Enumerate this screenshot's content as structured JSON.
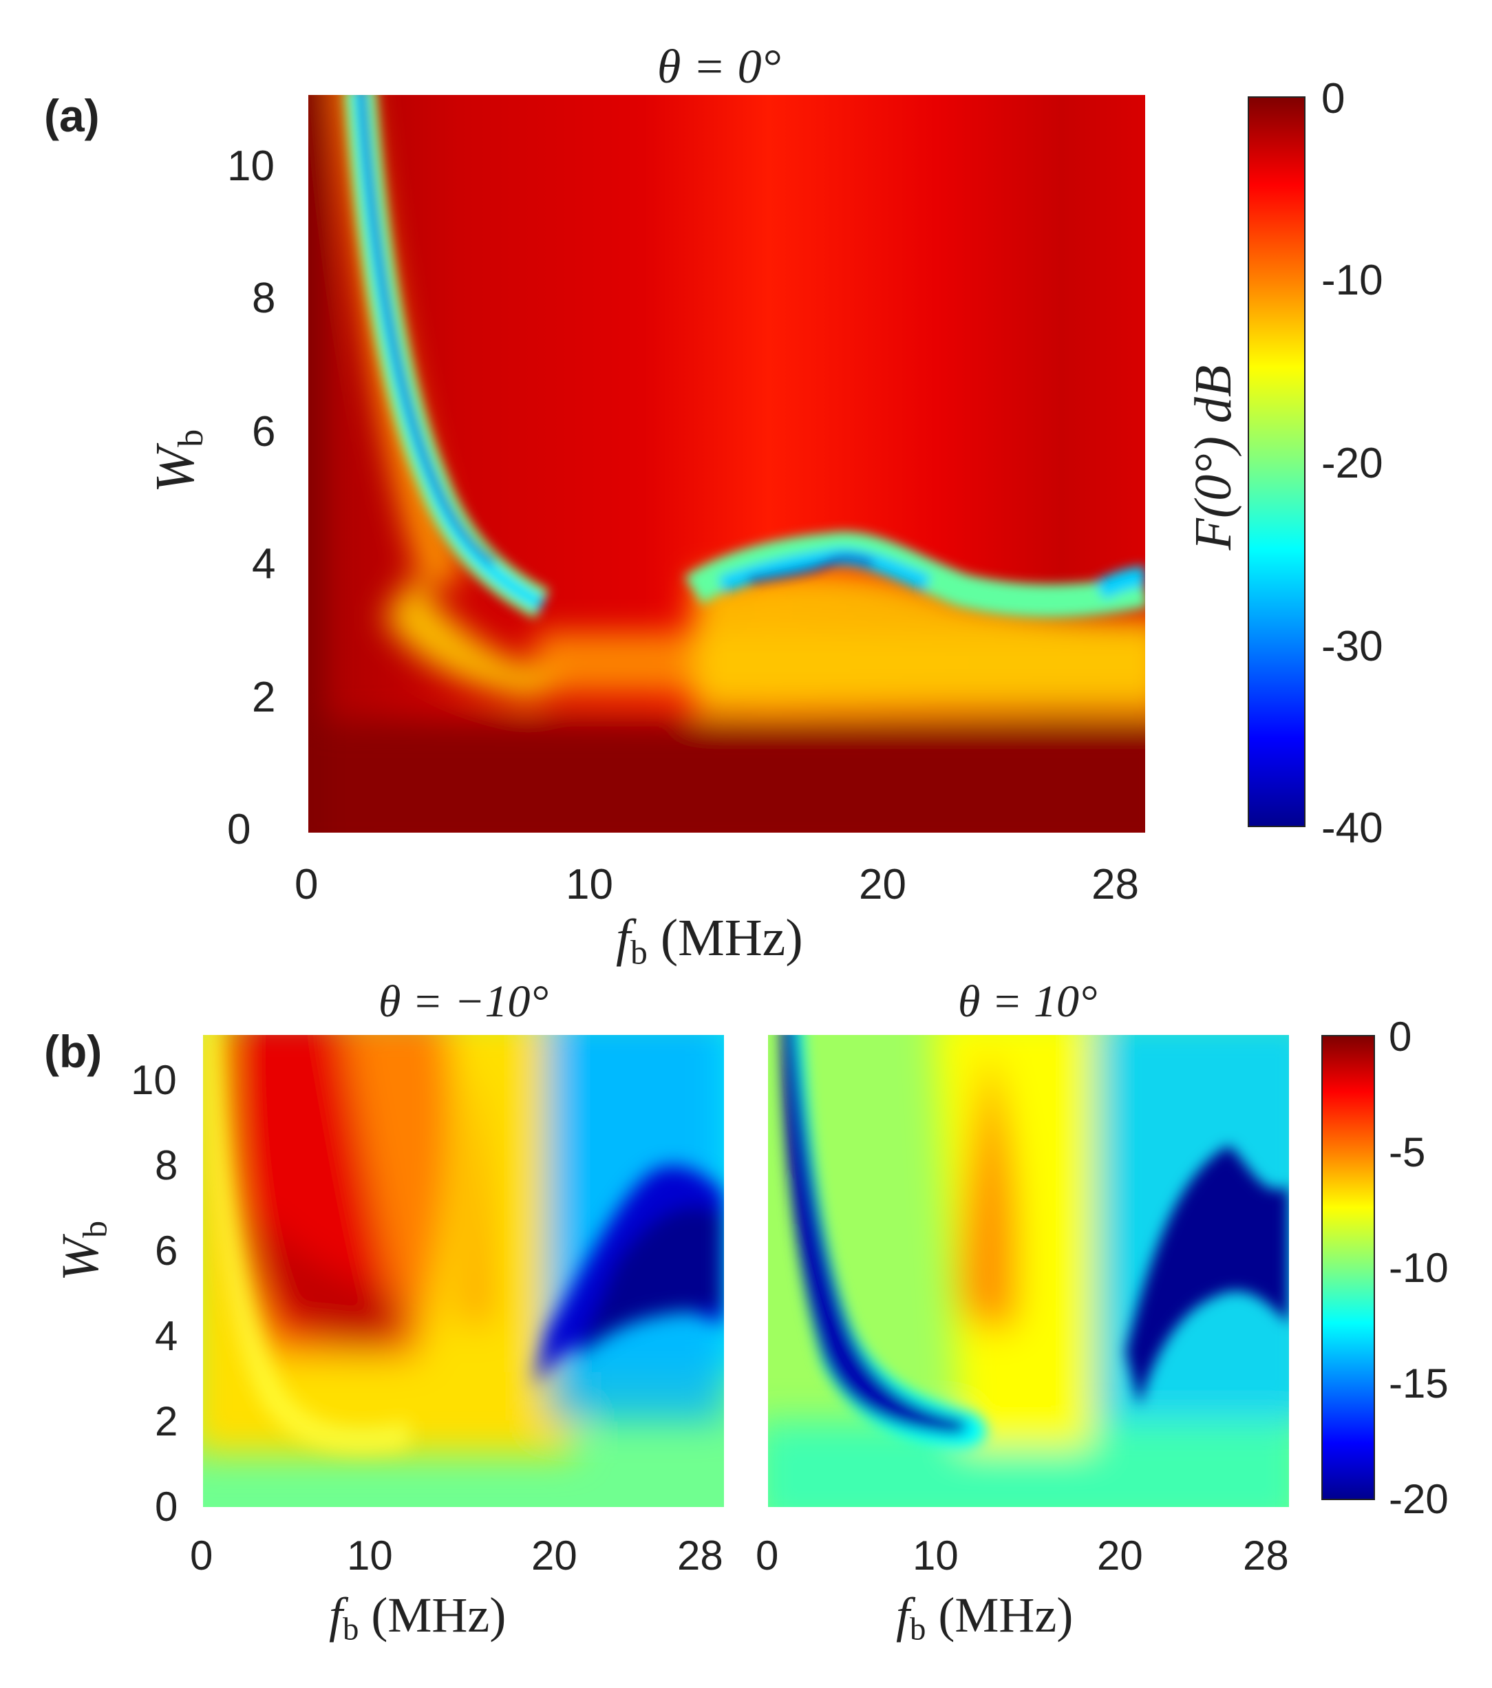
{
  "panels": {
    "a": {
      "letter": "(a)",
      "title": "θ = 0°"
    },
    "b": {
      "letter": "(b)",
      "title_left": "θ = −10°",
      "title_right": "θ = 10°"
    }
  },
  "axes": {
    "xlabel_symbol": "f",
    "xlabel_sub": "b",
    "xlabel_unit": " (MHz)",
    "ylabel_symbol": "W",
    "ylabel_sub": "b",
    "xticks": [
      "0",
      "10",
      "20",
      "28"
    ],
    "yticks": [
      "0",
      "2",
      "4",
      "6",
      "8",
      "10"
    ]
  },
  "colorbars": {
    "a": {
      "label": "F(0°) dB",
      "ticks": [
        "0",
        "-10",
        "-20",
        "-30",
        "-40"
      ]
    },
    "b": {
      "ticks": [
        "0",
        "-5",
        "-10",
        "-15",
        "-20"
      ]
    }
  },
  "colors": {
    "jet": [
      "#00008f",
      "#0000ff",
      "#0080ff",
      "#00ffff",
      "#80ff80",
      "#ffff00",
      "#ff8000",
      "#ff0000",
      "#800000"
    ]
  },
  "chart_data": [
    {
      "type": "heatmap",
      "title": "θ = 0°",
      "xlabel": "f_b (MHz)",
      "ylabel": "W_b",
      "xlim": [
        0,
        28
      ],
      "ylim": [
        0,
        11
      ],
      "colorbar_label": "F(0°) dB",
      "clim": [
        -40,
        0
      ],
      "regions": [
        {
          "description": "near 0 dB for W_b < 3 and for f_b near 0",
          "value_db": -1
        },
        {
          "description": "background above W_b = 3.5",
          "value_db": -4
        },
        {
          "description": "deep null curve from (f_b≈2, W_b=11) to (f_b≈7, W_b≈3.6)",
          "value_db": -38
        },
        {
          "description": "null band along W_b≈3.8-4.1 for f_b 14-19 MHz",
          "value_db": -36
        }
      ]
    },
    {
      "type": "heatmap",
      "title": "θ = −10°",
      "xlabel": "f_b (MHz)",
      "ylabel": "W_b",
      "xlim": [
        0,
        28
      ],
      "ylim": [
        0,
        11
      ],
      "clim": [
        -20,
        0
      ],
      "regions": [
        {
          "description": "high region for f_b 1-10, W_b 2-11",
          "value_db": -2
        },
        {
          "description": "low region for f_b 18-28, W_b 2-6",
          "value_db": -20
        }
      ]
    },
    {
      "type": "heatmap",
      "title": "θ = 10°",
      "xlabel": "f_b (MHz)",
      "ylabel": "W_b",
      "xlim": [
        0,
        28
      ],
      "ylim": [
        0,
        11
      ],
      "clim": [
        -20,
        0
      ],
      "regions": [
        {
          "description": "null curve from (f_b≈1, W_b=11) to (f_b≈11, W_b≈1.8)",
          "value_db": -20
        },
        {
          "description": "orange lobe near f_b≈12, W_b 3-8",
          "value_db": -5
        },
        {
          "description": "low region for f_b 21-28, W_b 2.5-6",
          "value_db": -20
        }
      ]
    }
  ]
}
